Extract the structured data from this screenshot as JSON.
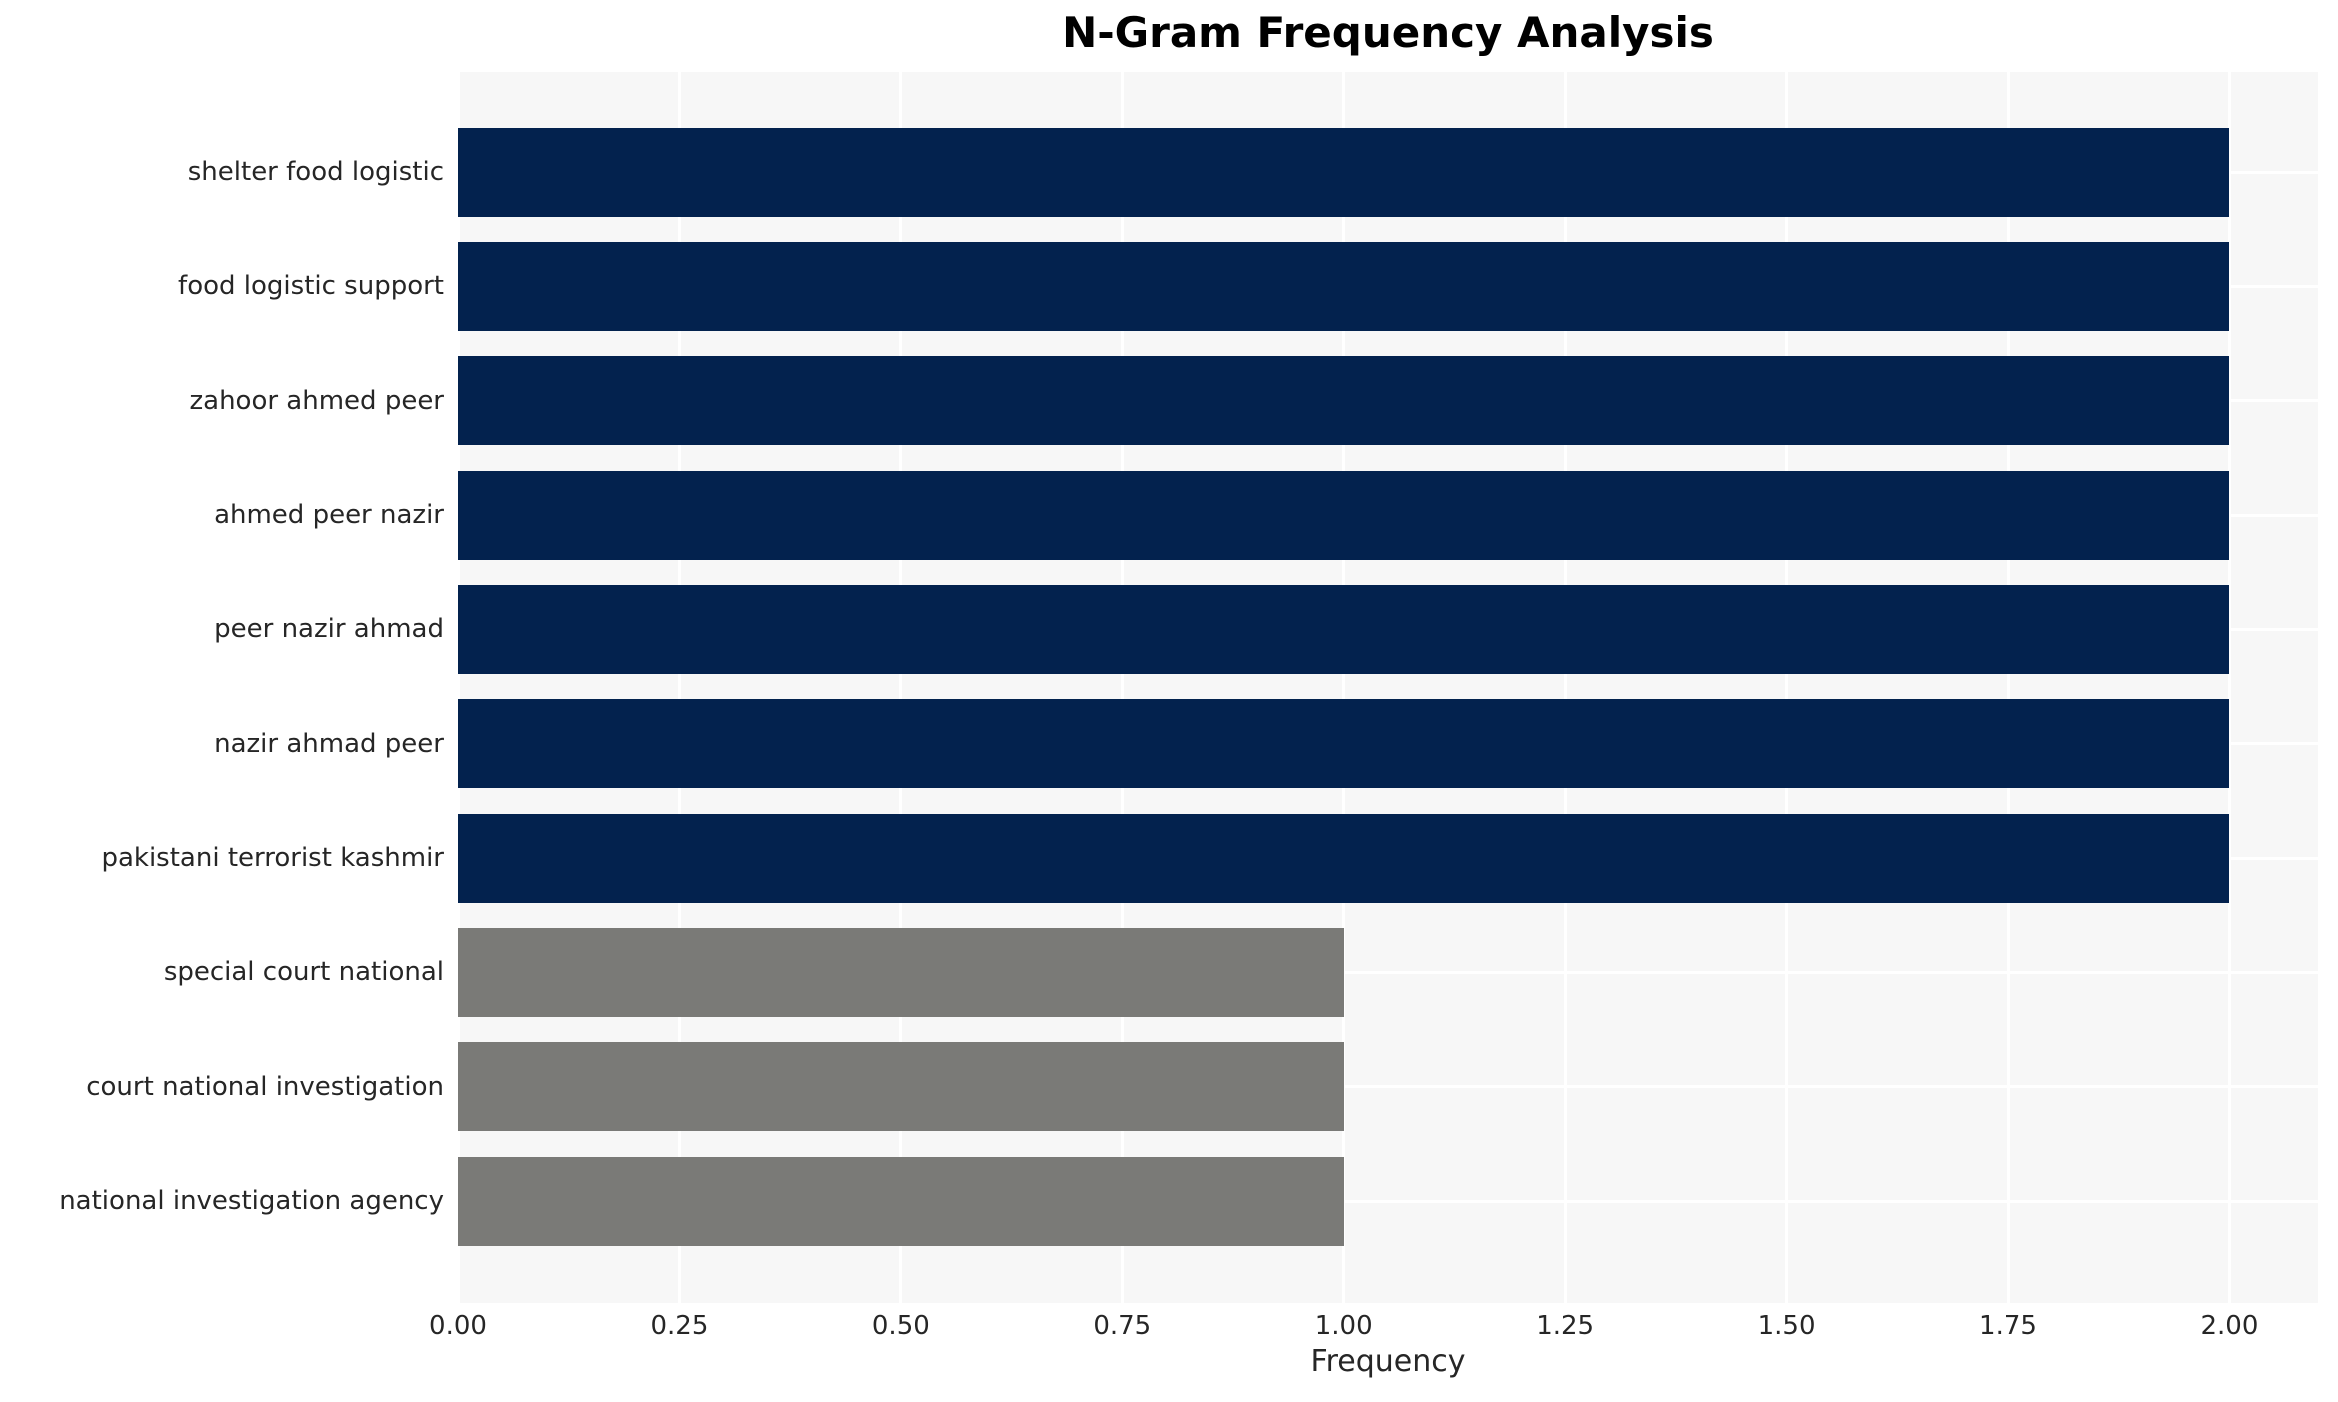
{
  "chart_data": {
    "type": "bar",
    "orientation": "horizontal",
    "title": "N-Gram Frequency Analysis",
    "xlabel": "Frequency",
    "ylabel": "",
    "categories": [
      "shelter food logistic",
      "food logistic support",
      "zahoor ahmed peer",
      "ahmed peer nazir",
      "peer nazir ahmad",
      "nazir ahmad peer",
      "pakistani terrorist kashmir",
      "special court national",
      "court national investigation",
      "national investigation agency"
    ],
    "values": [
      2,
      2,
      2,
      2,
      2,
      2,
      2,
      1,
      1,
      1
    ],
    "bar_colors": [
      "#03224e",
      "#03224e",
      "#03224e",
      "#03224e",
      "#03224e",
      "#03224e",
      "#03224e",
      "#7a7a77",
      "#7a7a77",
      "#7a7a77"
    ],
    "xlim": [
      0,
      2.1
    ],
    "xtick_labels": [
      "0.00",
      "0.25",
      "0.50",
      "0.75",
      "1.00",
      "1.25",
      "1.50",
      "1.75",
      "2.00"
    ],
    "grid": true,
    "legend": false,
    "colors": {
      "high_frequency_bar": "#03224e",
      "low_frequency_bar": "#7a7a77",
      "plot_background": "#f7f7f7",
      "gridline": "#ffffff",
      "tick_text": "#262626",
      "title_text": "#000000",
      "figure_background": "#ffffff"
    }
  }
}
